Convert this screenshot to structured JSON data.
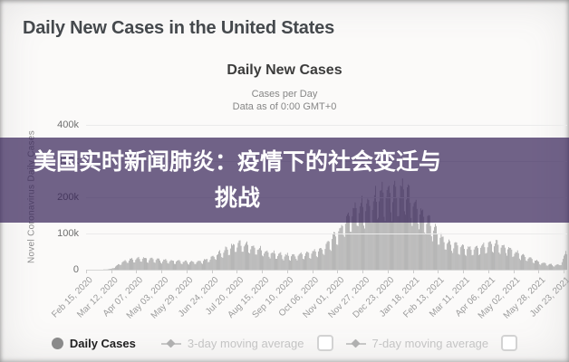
{
  "page": {
    "header_title": "Daily New Cases in the United States"
  },
  "overlay": {
    "line1": "美国实时新闻肺炎：疫情下的社会变迁与",
    "line2": "挑战",
    "background_color": "rgba(53,33,87,0.70)",
    "text_color": "#ffffff"
  },
  "legend": {
    "daily_cases": "Daily Cases",
    "ma3": "3-day moving average",
    "ma7": "7-day moving average",
    "ma3_checked": false,
    "ma7_checked": false
  },
  "chart_data": {
    "type": "bar",
    "title": "Daily New Cases",
    "subtitle": "Cases per Day",
    "note": "Data as of 0:00 GMT+0",
    "ylabel": "Novel Coronavirus Daily Cases",
    "series_name": "Daily Cases",
    "bar_color": "#a6a6a6",
    "grid": true,
    "legend_position": "bottom",
    "ylim": [
      0,
      400000
    ],
    "y_ticks": [
      {
        "value": 0,
        "label": "0"
      },
      {
        "value": 100000,
        "label": "100k"
      },
      {
        "value": 200000,
        "label": "200k"
      },
      {
        "value": 300000,
        "label": "300k"
      },
      {
        "value": 400000,
        "label": "400k"
      }
    ],
    "x_tick_labels": [
      "Feb 15, 2020",
      "Mar 12, 2020",
      "Apr 07, 2020",
      "May 03, 2020",
      "May 29, 2020",
      "Jun 24, 2020",
      "Jul 20, 2020",
      "Aug 15, 2020",
      "Sep 10, 2020",
      "Oct 06, 2020",
      "Nov 01, 2020",
      "Nov 27, 2020",
      "Dec 23, 2020",
      "Jan 18, 2021",
      "Feb 13, 2021",
      "Mar 11, 2021",
      "Apr 06, 2021",
      "May 02, 2021",
      "May 28, 2021",
      "Jun 23, 2021"
    ],
    "tick_interval_days": 26,
    "total_days": 498,
    "start_weekday_index": 6,
    "weekday_factors": [
      0.72,
      0.68,
      0.94,
      1.06,
      1.1,
      1.13,
      1.0
    ],
    "anchors": [
      [
        0,
        200
      ],
      [
        20,
        600
      ],
      [
        26,
        2500
      ],
      [
        31,
        10000
      ],
      [
        36,
        19000
      ],
      [
        42,
        26000
      ],
      [
        50,
        30000
      ],
      [
        58,
        31000
      ],
      [
        66,
        29000
      ],
      [
        75,
        26500
      ],
      [
        85,
        24000
      ],
      [
        95,
        22500
      ],
      [
        105,
        21000
      ],
      [
        112,
        20500
      ],
      [
        120,
        24000
      ],
      [
        128,
        31000
      ],
      [
        136,
        42000
      ],
      [
        145,
        56000
      ],
      [
        152,
        66000
      ],
      [
        158,
        70000
      ],
      [
        165,
        67000
      ],
      [
        172,
        62000
      ],
      [
        180,
        54000
      ],
      [
        188,
        47000
      ],
      [
        196,
        42500
      ],
      [
        205,
        39000
      ],
      [
        212,
        37500
      ],
      [
        220,
        40000
      ],
      [
        228,
        43000
      ],
      [
        236,
        48000
      ],
      [
        244,
        56000
      ],
      [
        252,
        78000
      ],
      [
        258,
        95000
      ],
      [
        264,
        115000
      ],
      [
        270,
        140000
      ],
      [
        276,
        158000
      ],
      [
        282,
        168000
      ],
      [
        288,
        172000
      ],
      [
        293,
        180000
      ],
      [
        300,
        195000
      ],
      [
        306,
        205000
      ],
      [
        310,
        210000
      ],
      [
        315,
        205000
      ],
      [
        320,
        210000
      ],
      [
        325,
        212000
      ],
      [
        328,
        215000
      ],
      [
        332,
        205000
      ],
      [
        336,
        192000
      ],
      [
        340,
        178000
      ],
      [
        345,
        160000
      ],
      [
        350,
        145000
      ],
      [
        355,
        130000
      ],
      [
        360,
        112000
      ],
      [
        365,
        96000
      ],
      [
        370,
        80000
      ],
      [
        375,
        71000
      ],
      [
        380,
        66000
      ],
      [
        385,
        62500
      ],
      [
        390,
        59500
      ],
      [
        395,
        57500
      ],
      [
        400,
        56500
      ],
      [
        405,
        58500
      ],
      [
        410,
        62000
      ],
      [
        415,
        66500
      ],
      [
        420,
        69500
      ],
      [
        425,
        70000
      ],
      [
        430,
        66000
      ],
      [
        435,
        60000
      ],
      [
        440,
        53000
      ],
      [
        445,
        46000
      ],
      [
        450,
        40000
      ],
      [
        455,
        34500
      ],
      [
        460,
        28500
      ],
      [
        465,
        24000
      ],
      [
        470,
        20000
      ],
      [
        475,
        16500
      ],
      [
        480,
        14000
      ],
      [
        485,
        12500
      ],
      [
        489,
        13500
      ],
      [
        492,
        22000
      ],
      [
        495,
        38000
      ],
      [
        497,
        58000
      ]
    ]
  }
}
